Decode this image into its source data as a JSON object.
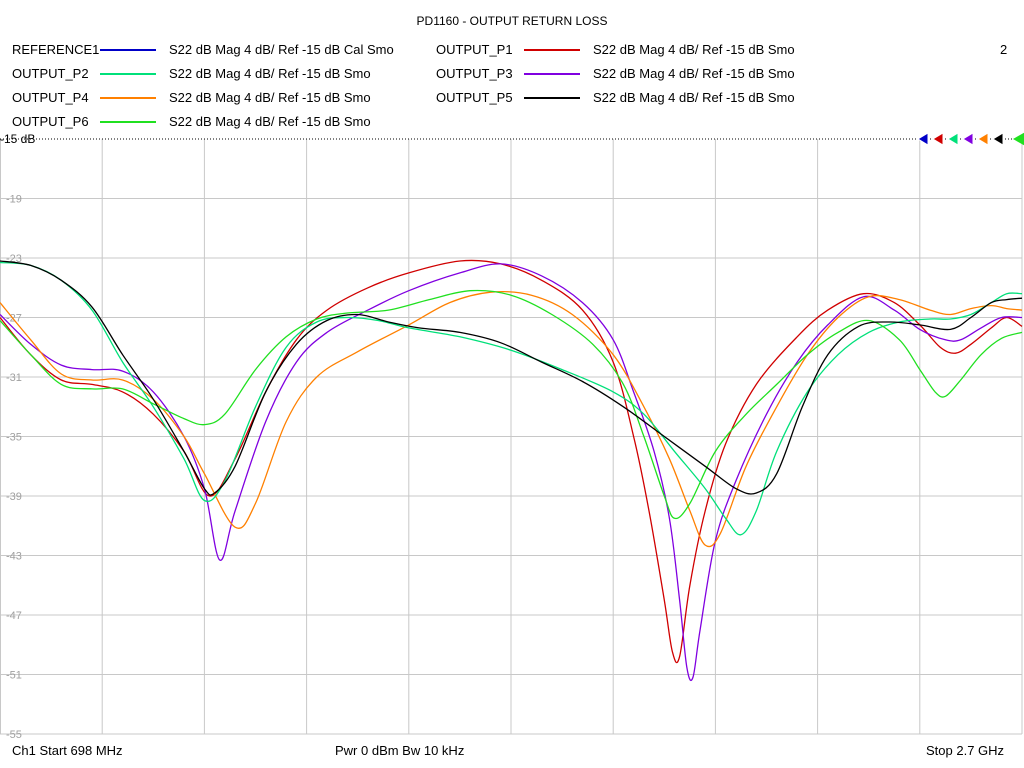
{
  "chart_data": {
    "type": "line",
    "title": "PD1160 - OUTPUT RETURN LOSS",
    "channel_number": "2",
    "ref_label": "-15 dB",
    "x_range": [
      0,
      10
    ],
    "ylim": [
      -55,
      -15
    ],
    "yticks": [
      "-19",
      "-23",
      "-27",
      "-31",
      "-35",
      "-39",
      "-43",
      "-47",
      "-51",
      "-55"
    ],
    "grid": true,
    "series": [
      {
        "name": "REFERENCE1",
        "desc": "S22  dB Mag  4 dB/ Ref -15 dB  Cal Smo",
        "color": "#0000c8",
        "marker": "filled",
        "points": []
      },
      {
        "name": "OUTPUT_P1",
        "desc": "S22  dB Mag  4 dB/ Ref -15 dB  Smo",
        "color": "#d00000",
        "marker": "filled",
        "points": [
          [
            0,
            -27
          ],
          [
            0.3,
            -29.5
          ],
          [
            0.6,
            -31.2
          ],
          [
            0.9,
            -31.5
          ],
          [
            1.2,
            -32
          ],
          [
            1.5,
            -33.5
          ],
          [
            1.8,
            -36
          ],
          [
            2.05,
            -39
          ],
          [
            2.3,
            -36.5
          ],
          [
            2.6,
            -32
          ],
          [
            2.9,
            -28.5
          ],
          [
            3.2,
            -26.5
          ],
          [
            3.6,
            -25
          ],
          [
            4.0,
            -24
          ],
          [
            4.5,
            -23.2
          ],
          [
            4.9,
            -23.4
          ],
          [
            5.3,
            -24.5
          ],
          [
            5.7,
            -26.5
          ],
          [
            6.0,
            -30
          ],
          [
            6.2,
            -35
          ],
          [
            6.35,
            -40
          ],
          [
            6.5,
            -46
          ],
          [
            6.58,
            -49.5
          ],
          [
            6.65,
            -49.8
          ],
          [
            6.75,
            -45
          ],
          [
            6.9,
            -40
          ],
          [
            7.1,
            -35.5
          ],
          [
            7.4,
            -31.5
          ],
          [
            7.8,
            -28.3
          ],
          [
            8.1,
            -26.5
          ],
          [
            8.45,
            -25.4
          ],
          [
            8.75,
            -26
          ],
          [
            9.0,
            -27.5
          ],
          [
            9.2,
            -29
          ],
          [
            9.35,
            -29.4
          ],
          [
            9.5,
            -28.8
          ],
          [
            9.7,
            -27.7
          ],
          [
            9.85,
            -27
          ],
          [
            10,
            -27.6
          ]
        ]
      },
      {
        "name": "OUTPUT_P2",
        "desc": "S22  dB Mag  4 dB/ Ref -15 dB  Smo",
        "color": "#00e07a",
        "marker": "filled",
        "points": [
          [
            0,
            -23.3
          ],
          [
            0.3,
            -23.5
          ],
          [
            0.6,
            -24.5
          ],
          [
            0.9,
            -26.5
          ],
          [
            1.2,
            -30
          ],
          [
            1.5,
            -33
          ],
          [
            1.8,
            -36.5
          ],
          [
            2.0,
            -39.3
          ],
          [
            2.2,
            -38
          ],
          [
            2.5,
            -33
          ],
          [
            2.8,
            -29
          ],
          [
            3.1,
            -27.3
          ],
          [
            3.4,
            -27
          ],
          [
            3.7,
            -27.2
          ],
          [
            4.0,
            -27.7
          ],
          [
            4.5,
            -28.3
          ],
          [
            5.0,
            -29.2
          ],
          [
            5.5,
            -30.5
          ],
          [
            6.0,
            -32
          ],
          [
            6.3,
            -33.5
          ],
          [
            6.6,
            -36
          ],
          [
            6.9,
            -38.5
          ],
          [
            7.1,
            -40.5
          ],
          [
            7.25,
            -41.6
          ],
          [
            7.4,
            -40
          ],
          [
            7.6,
            -36
          ],
          [
            7.9,
            -32
          ],
          [
            8.2,
            -29.5
          ],
          [
            8.5,
            -28
          ],
          [
            8.8,
            -27.3
          ],
          [
            9.1,
            -27.1
          ],
          [
            9.3,
            -27.1
          ],
          [
            9.5,
            -26.8
          ],
          [
            9.7,
            -26
          ],
          [
            9.85,
            -25.4
          ],
          [
            10,
            -25.4
          ]
        ]
      },
      {
        "name": "OUTPUT_P3",
        "desc": "S22  dB Mag  4 dB/ Ref -15 dB  Smo",
        "color": "#8000e0",
        "marker": "filled",
        "points": [
          [
            0,
            -26.8
          ],
          [
            0.3,
            -28.8
          ],
          [
            0.6,
            -30.2
          ],
          [
            0.9,
            -30.5
          ],
          [
            1.2,
            -30.6
          ],
          [
            1.5,
            -32
          ],
          [
            1.8,
            -35
          ],
          [
            2.0,
            -38.5
          ],
          [
            2.15,
            -43.3
          ],
          [
            2.3,
            -40
          ],
          [
            2.6,
            -34
          ],
          [
            2.9,
            -30
          ],
          [
            3.2,
            -28
          ],
          [
            3.6,
            -26.5
          ],
          [
            4.0,
            -25.2
          ],
          [
            4.5,
            -24
          ],
          [
            4.9,
            -23.4
          ],
          [
            5.3,
            -24.2
          ],
          [
            5.7,
            -26
          ],
          [
            6.0,
            -28.5
          ],
          [
            6.2,
            -32
          ],
          [
            6.4,
            -36
          ],
          [
            6.55,
            -40.5
          ],
          [
            6.65,
            -46
          ],
          [
            6.72,
            -50.5
          ],
          [
            6.78,
            -51.2
          ],
          [
            6.85,
            -48
          ],
          [
            7.0,
            -42
          ],
          [
            7.2,
            -38
          ],
          [
            7.5,
            -33.5
          ],
          [
            7.8,
            -30
          ],
          [
            8.1,
            -27.5
          ],
          [
            8.45,
            -25.6
          ],
          [
            8.75,
            -26.5
          ],
          [
            9.0,
            -27.8
          ],
          [
            9.25,
            -28.5
          ],
          [
            9.4,
            -28.5
          ],
          [
            9.6,
            -27.7
          ],
          [
            9.8,
            -27
          ],
          [
            10,
            -27
          ]
        ]
      },
      {
        "name": "OUTPUT_P4",
        "desc": "S22  dB Mag  4 dB/ Ref -15 dB  Smo",
        "color": "#ff8000",
        "marker": "filled",
        "points": [
          [
            0,
            -26
          ],
          [
            0.3,
            -28.5
          ],
          [
            0.6,
            -30.8
          ],
          [
            0.9,
            -31.2
          ],
          [
            1.2,
            -31.2
          ],
          [
            1.5,
            -32.5
          ],
          [
            1.8,
            -35
          ],
          [
            2.0,
            -37.5
          ],
          [
            2.3,
            -41.1
          ],
          [
            2.5,
            -39.5
          ],
          [
            2.8,
            -34
          ],
          [
            3.1,
            -31
          ],
          [
            3.5,
            -29.3
          ],
          [
            4.0,
            -27.5
          ],
          [
            4.4,
            -26
          ],
          [
            4.8,
            -25.3
          ],
          [
            5.2,
            -25.5
          ],
          [
            5.6,
            -26.8
          ],
          [
            6.0,
            -29.5
          ],
          [
            6.3,
            -33
          ],
          [
            6.55,
            -36.5
          ],
          [
            6.75,
            -40
          ],
          [
            6.9,
            -42.3
          ],
          [
            7.05,
            -41.5
          ],
          [
            7.3,
            -37
          ],
          [
            7.6,
            -33
          ],
          [
            7.9,
            -29.5
          ],
          [
            8.2,
            -27
          ],
          [
            8.5,
            -25.6
          ],
          [
            8.8,
            -25.8
          ],
          [
            9.1,
            -26.5
          ],
          [
            9.3,
            -26.8
          ],
          [
            9.5,
            -26.4
          ],
          [
            9.7,
            -26.2
          ],
          [
            9.85,
            -26.4
          ],
          [
            10,
            -26.5
          ]
        ]
      },
      {
        "name": "OUTPUT_P5",
        "desc": "S22  dB Mag  4 dB/ Ref -15 dB  Smo",
        "color": "#000000",
        "marker": "filled",
        "points": [
          [
            0,
            -23.2
          ],
          [
            0.3,
            -23.5
          ],
          [
            0.6,
            -24.5
          ],
          [
            0.9,
            -26.3
          ],
          [
            1.2,
            -29.5
          ],
          [
            1.5,
            -32.5
          ],
          [
            1.8,
            -36
          ],
          [
            2.0,
            -38.5
          ],
          [
            2.1,
            -38.8
          ],
          [
            2.3,
            -37
          ],
          [
            2.6,
            -32
          ],
          [
            2.9,
            -28.8
          ],
          [
            3.2,
            -27.2
          ],
          [
            3.5,
            -26.8
          ],
          [
            3.8,
            -27.3
          ],
          [
            4.1,
            -27.7
          ],
          [
            4.5,
            -28
          ],
          [
            4.9,
            -28.7
          ],
          [
            5.3,
            -30
          ],
          [
            5.7,
            -31.3
          ],
          [
            6.1,
            -33
          ],
          [
            6.5,
            -35
          ],
          [
            6.9,
            -37
          ],
          [
            7.2,
            -38.5
          ],
          [
            7.4,
            -38.8
          ],
          [
            7.6,
            -37.5
          ],
          [
            7.85,
            -33
          ],
          [
            8.1,
            -29.5
          ],
          [
            8.4,
            -27.6
          ],
          [
            8.7,
            -27.3
          ],
          [
            9.0,
            -27.5
          ],
          [
            9.3,
            -27.8
          ],
          [
            9.5,
            -27
          ],
          [
            9.7,
            -26
          ],
          [
            9.85,
            -25.8
          ],
          [
            10,
            -25.7
          ]
        ]
      },
      {
        "name": "OUTPUT_P6",
        "desc": "S22  dB Mag  4 dB/ Ref -15 dB  Smo",
        "color": "#20e020",
        "marker": "outline",
        "points": [
          [
            0,
            -27.2
          ],
          [
            0.3,
            -29.5
          ],
          [
            0.6,
            -31.5
          ],
          [
            0.9,
            -31.8
          ],
          [
            1.2,
            -31.8
          ],
          [
            1.5,
            -32.8
          ],
          [
            1.8,
            -33.8
          ],
          [
            2.0,
            -34.2
          ],
          [
            2.2,
            -33.5
          ],
          [
            2.5,
            -30.5
          ],
          [
            2.8,
            -28.3
          ],
          [
            3.1,
            -27.1
          ],
          [
            3.4,
            -26.7
          ],
          [
            3.8,
            -26.5
          ],
          [
            4.2,
            -25.8
          ],
          [
            4.6,
            -25.2
          ],
          [
            5.0,
            -25.5
          ],
          [
            5.4,
            -26.8
          ],
          [
            5.8,
            -28.8
          ],
          [
            6.1,
            -31.5
          ],
          [
            6.3,
            -35
          ],
          [
            6.5,
            -39
          ],
          [
            6.6,
            -40.5
          ],
          [
            6.75,
            -39.5
          ],
          [
            7.0,
            -36
          ],
          [
            7.3,
            -33.5
          ],
          [
            7.6,
            -31.5
          ],
          [
            7.9,
            -29.5
          ],
          [
            8.2,
            -28
          ],
          [
            8.5,
            -27.2
          ],
          [
            8.8,
            -28.5
          ],
          [
            9.0,
            -30.5
          ],
          [
            9.15,
            -32
          ],
          [
            9.25,
            -32.3
          ],
          [
            9.4,
            -31.2
          ],
          [
            9.6,
            -29.5
          ],
          [
            9.8,
            -28.4
          ],
          [
            10,
            -28
          ]
        ]
      }
    ]
  },
  "footer": {
    "left": "Ch1  Start  698 MHz",
    "center": "Pwr  0 dBm  Bw  10 kHz",
    "right": "Stop  2.7 GHz"
  }
}
